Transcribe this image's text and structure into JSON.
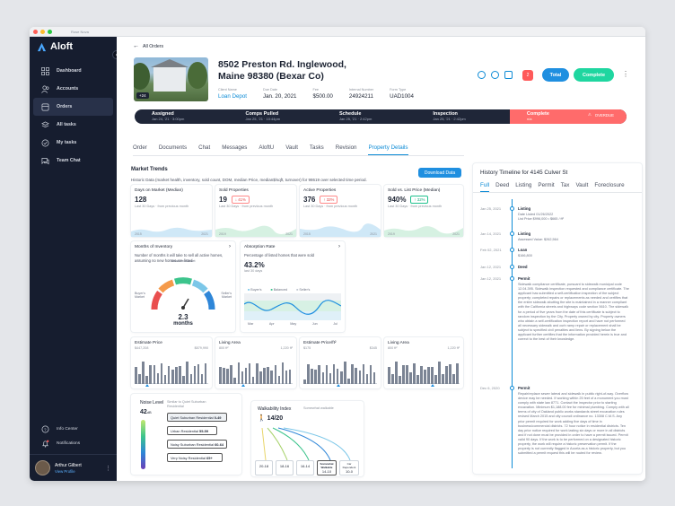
{
  "browser": {
    "title": "Rose Nova"
  },
  "app": {
    "name": "Aloft",
    "accent": "#1f8fe0",
    "sidebar_bg": "#161d2f"
  },
  "sidebar": {
    "items": [
      {
        "label": "Dashboard",
        "icon": "grid-icon"
      },
      {
        "label": "Accounts",
        "icon": "users-icon"
      },
      {
        "label": "Orders",
        "icon": "box-icon",
        "active": true
      },
      {
        "label": "All tasks",
        "icon": "layers-icon"
      },
      {
        "label": "My tasks",
        "icon": "check-circle-icon"
      },
      {
        "label": "Team Chat",
        "icon": "chat-icon"
      }
    ],
    "bottom": [
      {
        "label": "Info Center",
        "icon": "help-icon"
      },
      {
        "label": "Notifications",
        "icon": "bell-icon"
      }
    ],
    "user": {
      "name": "Arthur Gilbert",
      "link": "View Profile"
    }
  },
  "order": {
    "back": "All Orders",
    "address": "8502 Preston Rd. Inglewood, Maine 98380 (Bexar Co)",
    "photo_badge": "+24",
    "meta": [
      {
        "label": "Client Name",
        "value": "Loan Depot"
      },
      {
        "label": "Due Date",
        "value": "Jan. 20, 2021"
      },
      {
        "label": "Fee",
        "value": "$500.00"
      },
      {
        "label": "Internal Number",
        "value": "24924211"
      },
      {
        "label": "Form Type",
        "value": "UAD1004"
      }
    ],
    "avatar_badge": "2",
    "total": "Total",
    "complete": "Complete"
  },
  "progress": {
    "stages": [
      {
        "name": "Assigned",
        "date": "Jan 24, '21 · 3:00pm"
      },
      {
        "name": "Comps Pulled",
        "date": "Jan 25, '21 · 10:44pm"
      },
      {
        "name": "Schedule",
        "date": "Jan 25, '21 · 2:42pm"
      },
      {
        "name": "Inspection",
        "date": "Jan 25, '21 · 2:42pm"
      },
      {
        "name": "Complete",
        "date": "n/a"
      }
    ],
    "overdue": "OVERDUE"
  },
  "tabs": [
    "Order",
    "Documents",
    "Chat",
    "Messages",
    "AloftU",
    "Vault",
    "Tasks",
    "Revision",
    "Property Details"
  ],
  "market": {
    "title": "Market Trends",
    "subtitle": "Historic Data (market health, inventory, sold count, DOM, median Price, median$/sqft, turnover) for 98619 over selected time period.",
    "download": "Download Data",
    "kpis": [
      {
        "label": "Days on Market (Median)",
        "value": "128",
        "chip": "",
        "sub": "Last 30 Days",
        "sub2": "from previous month",
        "y1": "2015",
        "y2": "2021"
      },
      {
        "label": "Sold Properties",
        "value": "19",
        "chip": "↓ 41%",
        "up": false,
        "sub": "Last 30 Days",
        "sub2": "from previous month",
        "y1": "2019",
        "y2": "2021"
      },
      {
        "label": "Active Properties",
        "value": "376",
        "chip": "↑ 32%",
        "up": false,
        "sub": "Last 30 Days",
        "sub2": "from previous month",
        "y1": "2015",
        "y2": "2021"
      },
      {
        "label": "Sold vs. List Price (Median)",
        "value": "940%",
        "chip": "↑ 32%",
        "up": true,
        "sub": "Last 30 Days",
        "sub2": "from previous month",
        "y1": "2019",
        "y2": "2021"
      }
    ],
    "inventory": {
      "title": "Months of Inventory",
      "desc": "Number of months it will take to sell all active homes, assuming no new homes are listed",
      "value": "2.3",
      "unit": "months",
      "balanced": "Balanced Market",
      "buyers": "Buyer's Market",
      "sellers": "Seller's Market"
    },
    "absorption": {
      "title": "Absorption Rate",
      "desc": "Percentage of listed homes that were sold",
      "value": "43.2%",
      "sub": "last 30 days",
      "legend": [
        "Buyer's",
        "Balanced",
        "Seller's"
      ],
      "months": [
        "Mar",
        "Apr",
        "May",
        "Jun",
        "Jul"
      ]
    },
    "hist": [
      {
        "label": "Estimate Price",
        "min": "$447,208",
        "max": "$879,990"
      },
      {
        "label": "Living Area",
        "min": "800 ft²",
        "max": "1,220 ft²"
      },
      {
        "label": "Estimate Price/ft²",
        "min": "$175",
        "max": "$345"
      },
      {
        "label": "Living Area",
        "min": "800 ft²",
        "max": "1,220 ft²"
      }
    ],
    "noise": {
      "title": "Noise Level",
      "sub": "Similar to Quiet Suburban Residential",
      "value": "42",
      "unit": "dB",
      "levels": [
        {
          "name": "Quiet Suburban Residential",
          "range": "0-49"
        },
        {
          "name": "Urban Residential",
          "range": "55-59"
        },
        {
          "name": "Noisy Suburban Residential",
          "range": "60-64"
        },
        {
          "name": "Very Noisy Residential",
          "range": "65+"
        }
      ]
    },
    "walk": {
      "title": "Walkability Index",
      "sub": "Somewhat walkable",
      "value": "14/20",
      "bars": [
        {
          "range": "20-18",
          "tag": ""
        },
        {
          "range": "18-16",
          "tag": ""
        },
        {
          "range": "16-14",
          "tag": ""
        },
        {
          "range": "14-10",
          "tag": "Somewhat Walkable"
        },
        {
          "range": "10-0",
          "tag": "Car Dependent"
        }
      ]
    }
  },
  "timeline": {
    "title": "History Timeline for 4145 Culver St",
    "tabs": [
      "Full",
      "Deed",
      "Listing",
      "Permit",
      "Tax",
      "Vault",
      "Foreclosure"
    ],
    "events": [
      {
        "date": "Jan 25, 2021",
        "name": "Listing",
        "sub": "Date Listed 01/26/2022\nList Price $996,000 • $665 / ft²"
      },
      {
        "date": "Jan 14, 2021",
        "name": "Listing",
        "sub": "Assessed Value: $262,564"
      },
      {
        "date": "Feb 02, 2021",
        "name": "Loan",
        "sub": "$166,800"
      },
      {
        "date": "Jan 12, 2021",
        "name": "Deed",
        "sub": ""
      },
      {
        "date": "Jan 12, 2021",
        "name": "Permit",
        "sub": "Sidewalk compliance certificate, pursuant to sidewalk municipal code 12.04.395. Sidewalk inspection requested and compliance certificate. The applicant has submitted a self-certification inspection of the subject property; completed repairs or replacements as needed and certifies that the entire sidewalk abutting the site is maintained in a manner compliant with the California streets and highways code section 5610. The sidewalk for a period of five years from the date of this certificate is subject to random inspection by the City. Property owned by city. Property owners who obtain a self-certification inspection report and have not performed all necessary sidewalk and curb ramp repair or replacement shall be subject to specified civil penalties and liens. By signing below the applicant further certifies that the information provided herein is true and correct to the best of their knowledge."
      },
      {
        "date": "Dec 6, 2020",
        "name": "Permit",
        "sub": "Repair/replace sewer lateral and sidewalk in public right-of-way. Overflow device may be needed. If working within 25 feet of a monument you must comply with state law 8771. Contact the inspector prior to starting excavation. Minimum $1,188.00 fee for minimal plumbing. Comply with all terms of city of Oakland public works standards street excavation rules revised March 2015 and city council ordinance no. 13308 C.M.S. Any prior permit required for work adding five days of time in business/commercial districts. 72 hour notice in residential districts. Ten day prior notice required for work lasting six days or more in all districts and if not done must be provided in order to have a permit issued. Permit valid 90 days. If the work is to be performed on a designated historic property, the work will require a historic preservation permit. If the property is not currently flagged in Accela as a historic property, but you submitted a permit request this will be routed for review."
      }
    ]
  }
}
